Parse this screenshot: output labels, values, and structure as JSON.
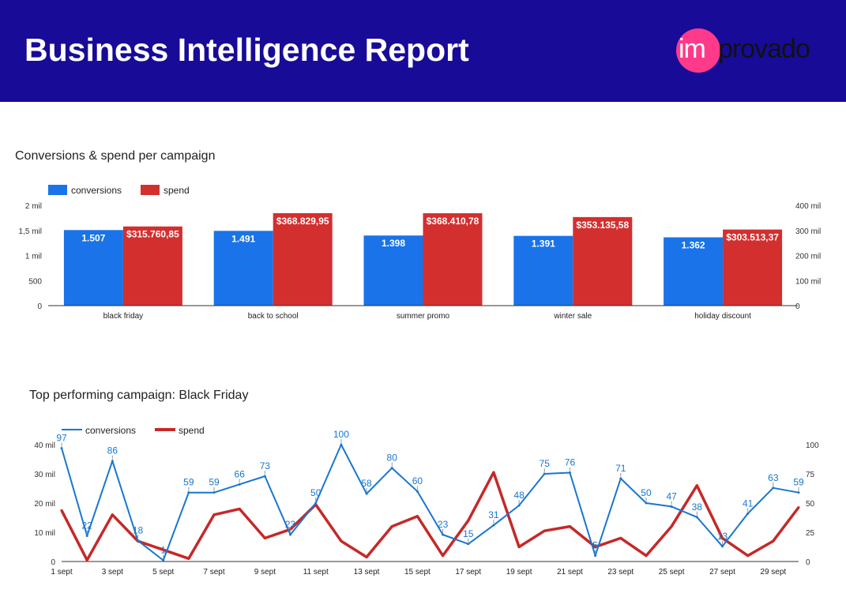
{
  "header": {
    "title": "Business Intelligence Report",
    "logo_prefix": "im",
    "logo_suffix": "provado",
    "background": "#180b98",
    "logo_color": "#ff3a8a"
  },
  "colors": {
    "conversions_bar": "#1a73e8",
    "spend_bar": "#d32f2f",
    "conversions_line": "#1976d2",
    "spend_line": "#c62828"
  },
  "chart_data": [
    {
      "type": "bar",
      "title": "Conversions & spend per campaign",
      "categories": [
        "black friday",
        "back to school",
        "summer promo",
        "winter sale",
        "holiday discount"
      ],
      "series": [
        {
          "name": "conversions",
          "axis": "left",
          "values": [
            1507,
            1491,
            1398,
            1391,
            1362
          ],
          "labels": [
            "1.507",
            "1.491",
            "1.398",
            "1.391",
            "1.362"
          ]
        },
        {
          "name": "spend",
          "axis": "right",
          "values": [
            315760.85,
            368829.95,
            368410.78,
            353135.58,
            303513.37
          ],
          "labels": [
            "$315.760,85",
            "$368.829,95",
            "$368.410,78",
            "$353.135,58",
            "$303.513,37"
          ]
        }
      ],
      "y_left": {
        "range": [
          0,
          2000
        ],
        "ticks": [
          0,
          500,
          1000,
          1500,
          2000
        ],
        "tick_labels": [
          "0",
          "500",
          "1 mil",
          "1,5 mil",
          "2 mil"
        ]
      },
      "y_right": {
        "range": [
          0,
          400000
        ],
        "ticks": [
          0,
          100000,
          200000,
          300000,
          400000
        ],
        "tick_labels": [
          "0",
          "100 mil",
          "200 mil",
          "300 mil",
          "400 mil"
        ]
      },
      "legend": "top-left",
      "grid": false
    },
    {
      "type": "line",
      "title": "Top performing campaign: Black Friday",
      "x": [
        1,
        2,
        3,
        4,
        5,
        6,
        7,
        8,
        9,
        10,
        11,
        12,
        13,
        14,
        15,
        16,
        17,
        18,
        19,
        20,
        21,
        22,
        23,
        24,
        25,
        26,
        27,
        28,
        29,
        30
      ],
      "x_tick_values": [
        1,
        3,
        5,
        7,
        9,
        11,
        13,
        15,
        17,
        19,
        21,
        23,
        25,
        27,
        29
      ],
      "x_tick_labels": [
        "1 sept",
        "3 sept",
        "5 sept",
        "7 sept",
        "9 sept",
        "11 sept",
        "13 sept",
        "15 sept",
        "17 sept",
        "19 sept",
        "21 sept",
        "23 sept",
        "25 sept",
        "27 sept",
        "29 sept"
      ],
      "series": [
        {
          "name": "conversions",
          "axis": "right",
          "values": [
            97,
            22,
            86,
            18,
            1,
            59,
            59,
            66,
            73,
            23,
            50,
            100,
            58,
            80,
            60,
            23,
            15,
            31,
            48,
            75,
            76,
            5,
            71,
            50,
            47,
            38,
            13,
            41,
            63,
            59
          ],
          "labels": [
            "97",
            "22",
            "86",
            "18",
            "1",
            "59",
            "59",
            "66",
            "73",
            "23",
            "50",
            "100",
            "58",
            "80",
            "60",
            "23",
            "15",
            "31",
            "48",
            "75",
            "76",
            "5",
            "71",
            "50",
            "47",
            "38",
            "13",
            "41",
            "63",
            "59"
          ]
        },
        {
          "name": "spend",
          "axis": "left",
          "values": [
            17500,
            500,
            16000,
            7000,
            4000,
            1000,
            16000,
            18000,
            8000,
            11000,
            19500,
            7000,
            1500,
            12000,
            15500,
            2000,
            14000,
            30500,
            5000,
            10500,
            12000,
            5000,
            8000,
            2000,
            12000,
            26000,
            8000,
            2000,
            7000,
            18500
          ]
        }
      ],
      "y_left": {
        "range": [
          0,
          40000
        ],
        "ticks": [
          0,
          10000,
          20000,
          30000,
          40000
        ],
        "tick_labels": [
          "0",
          "10 mil",
          "20 mil",
          "30 mil",
          "40 mil"
        ]
      },
      "y_right": {
        "range": [
          0,
          100
        ],
        "ticks": [
          0,
          25,
          50,
          75,
          100
        ],
        "tick_labels": [
          "0",
          "25",
          "50",
          "75",
          "100"
        ]
      },
      "legend": "top-left",
      "grid": false
    }
  ]
}
